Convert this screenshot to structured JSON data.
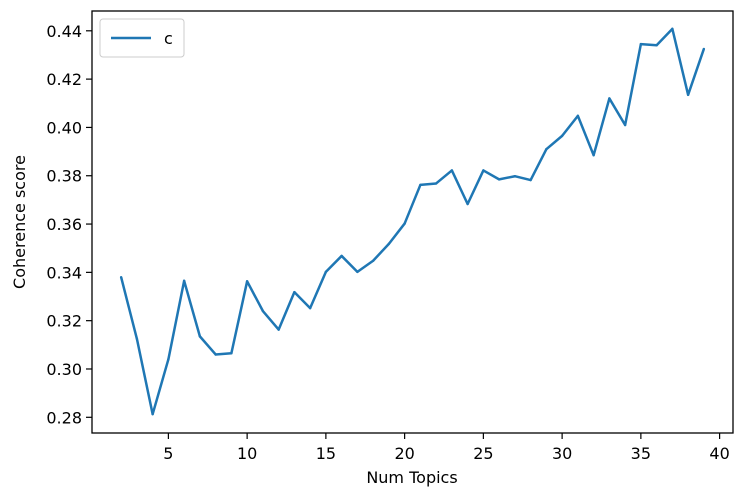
{
  "chart_data": {
    "type": "line",
    "xlabel": "Num Topics",
    "ylabel": "Coherence score",
    "xlim": [
      0.15,
      40.85
    ],
    "ylim": [
      0.2735,
      0.4482
    ],
    "xticks": [
      5,
      10,
      15,
      20,
      25,
      30,
      35,
      40
    ],
    "yticks": [
      0.28,
      0.3,
      0.32,
      0.34,
      0.36,
      0.38,
      0.4,
      0.42,
      0.44
    ],
    "xtick_labels": [
      "5",
      "10",
      "15",
      "20",
      "25",
      "30",
      "35",
      "40"
    ],
    "ytick_labels": [
      "0.28",
      "0.30",
      "0.32",
      "0.34",
      "0.36",
      "0.38",
      "0.40",
      "0.42",
      "0.44"
    ],
    "grid": false,
    "legend": "top-left",
    "series": [
      {
        "name": "c",
        "color": "#1f77b4",
        "x": [
          2,
          3,
          4,
          5,
          6,
          7,
          8,
          9,
          10,
          11,
          12,
          13,
          14,
          15,
          16,
          17,
          18,
          19,
          20,
          21,
          22,
          23,
          24,
          25,
          26,
          27,
          28,
          29,
          30,
          31,
          32,
          33,
          34,
          35,
          36,
          37,
          38,
          39
        ],
        "y": [
          0.338,
          0.3125,
          0.2813,
          0.304,
          0.3365,
          0.3135,
          0.306,
          0.3065,
          0.3363,
          0.324,
          0.3163,
          0.3318,
          0.3252,
          0.3402,
          0.3468,
          0.3402,
          0.3448,
          0.3518,
          0.3602,
          0.3762,
          0.3768,
          0.3822,
          0.3683,
          0.3822,
          0.3785,
          0.3798,
          0.3782,
          0.391,
          0.3965,
          0.4048,
          0.3885,
          0.412,
          0.401,
          0.4345,
          0.434,
          0.4408,
          0.4135,
          0.4325
        ]
      }
    ]
  }
}
